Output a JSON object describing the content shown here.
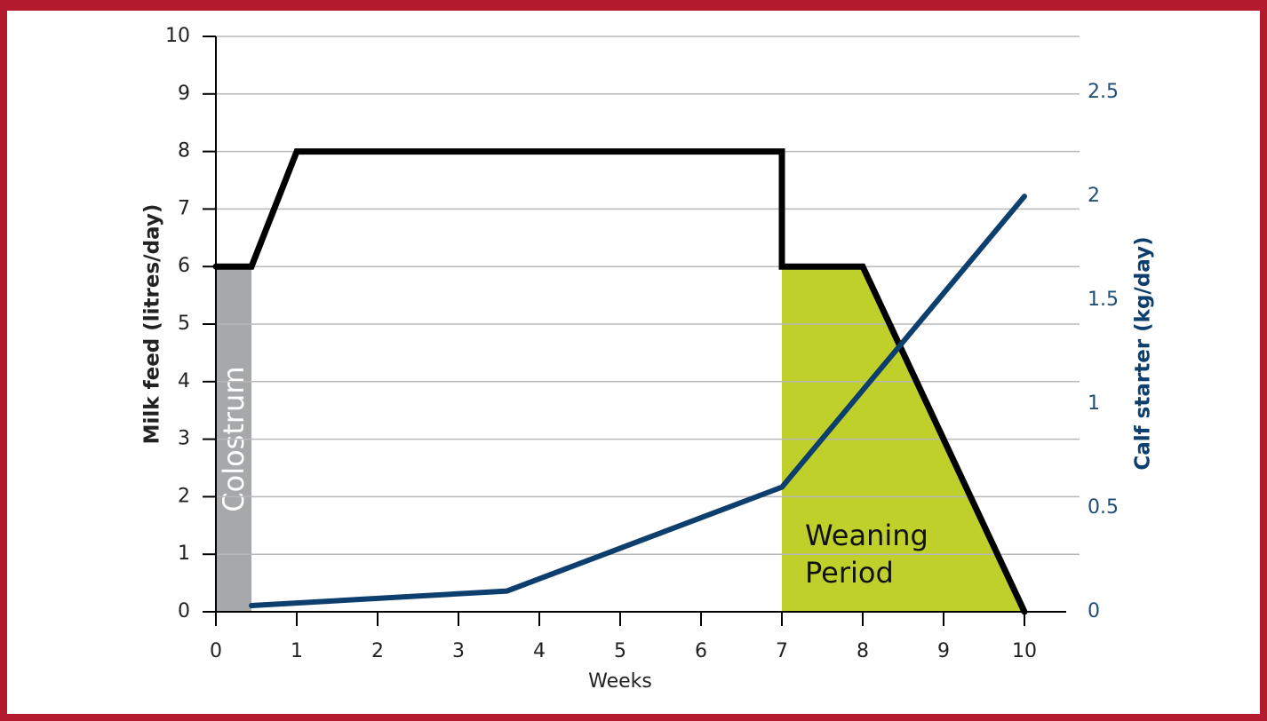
{
  "chart_data": {
    "type": "line",
    "xlabel": "Weeks",
    "ylabel": "Milk feed (litres/day)",
    "y2label": "Calf starter (kg/day)",
    "xlim": [
      0,
      10
    ],
    "xticks": [
      0,
      1,
      2,
      3,
      4,
      5,
      6,
      7,
      8,
      9,
      10
    ],
    "ylim": [
      0,
      10
    ],
    "yticks": [
      0,
      1,
      2,
      3,
      4,
      5,
      6,
      7,
      8,
      9,
      10
    ],
    "y2lim": [
      0,
      2.77
    ],
    "y2ticks": [
      0,
      0.5,
      1,
      1.5,
      2,
      2.5
    ],
    "grid": true,
    "areas": [
      {
        "label": "Colostrum",
        "color": "#a7a8aa",
        "x": [
          0,
          0.44
        ],
        "values": [
          6,
          6
        ]
      },
      {
        "label": [
          "Weaning",
          "Period"
        ],
        "color": "#c0d02b",
        "x": [
          7,
          8,
          10
        ],
        "values": [
          6,
          6,
          0
        ]
      }
    ],
    "series": [
      {
        "color": "#000000",
        "x": [
          0,
          0.44,
          1,
          7,
          7,
          8,
          10
        ],
        "values": [
          6,
          6,
          8,
          8,
          6,
          6,
          0
        ]
      },
      {
        "color": "#0d3f6e",
        "axis": "y2",
        "x": [
          0.44,
          3.6,
          7,
          10
        ],
        "values": [
          0.03,
          0.1,
          0.6,
          2
        ]
      }
    ]
  }
}
